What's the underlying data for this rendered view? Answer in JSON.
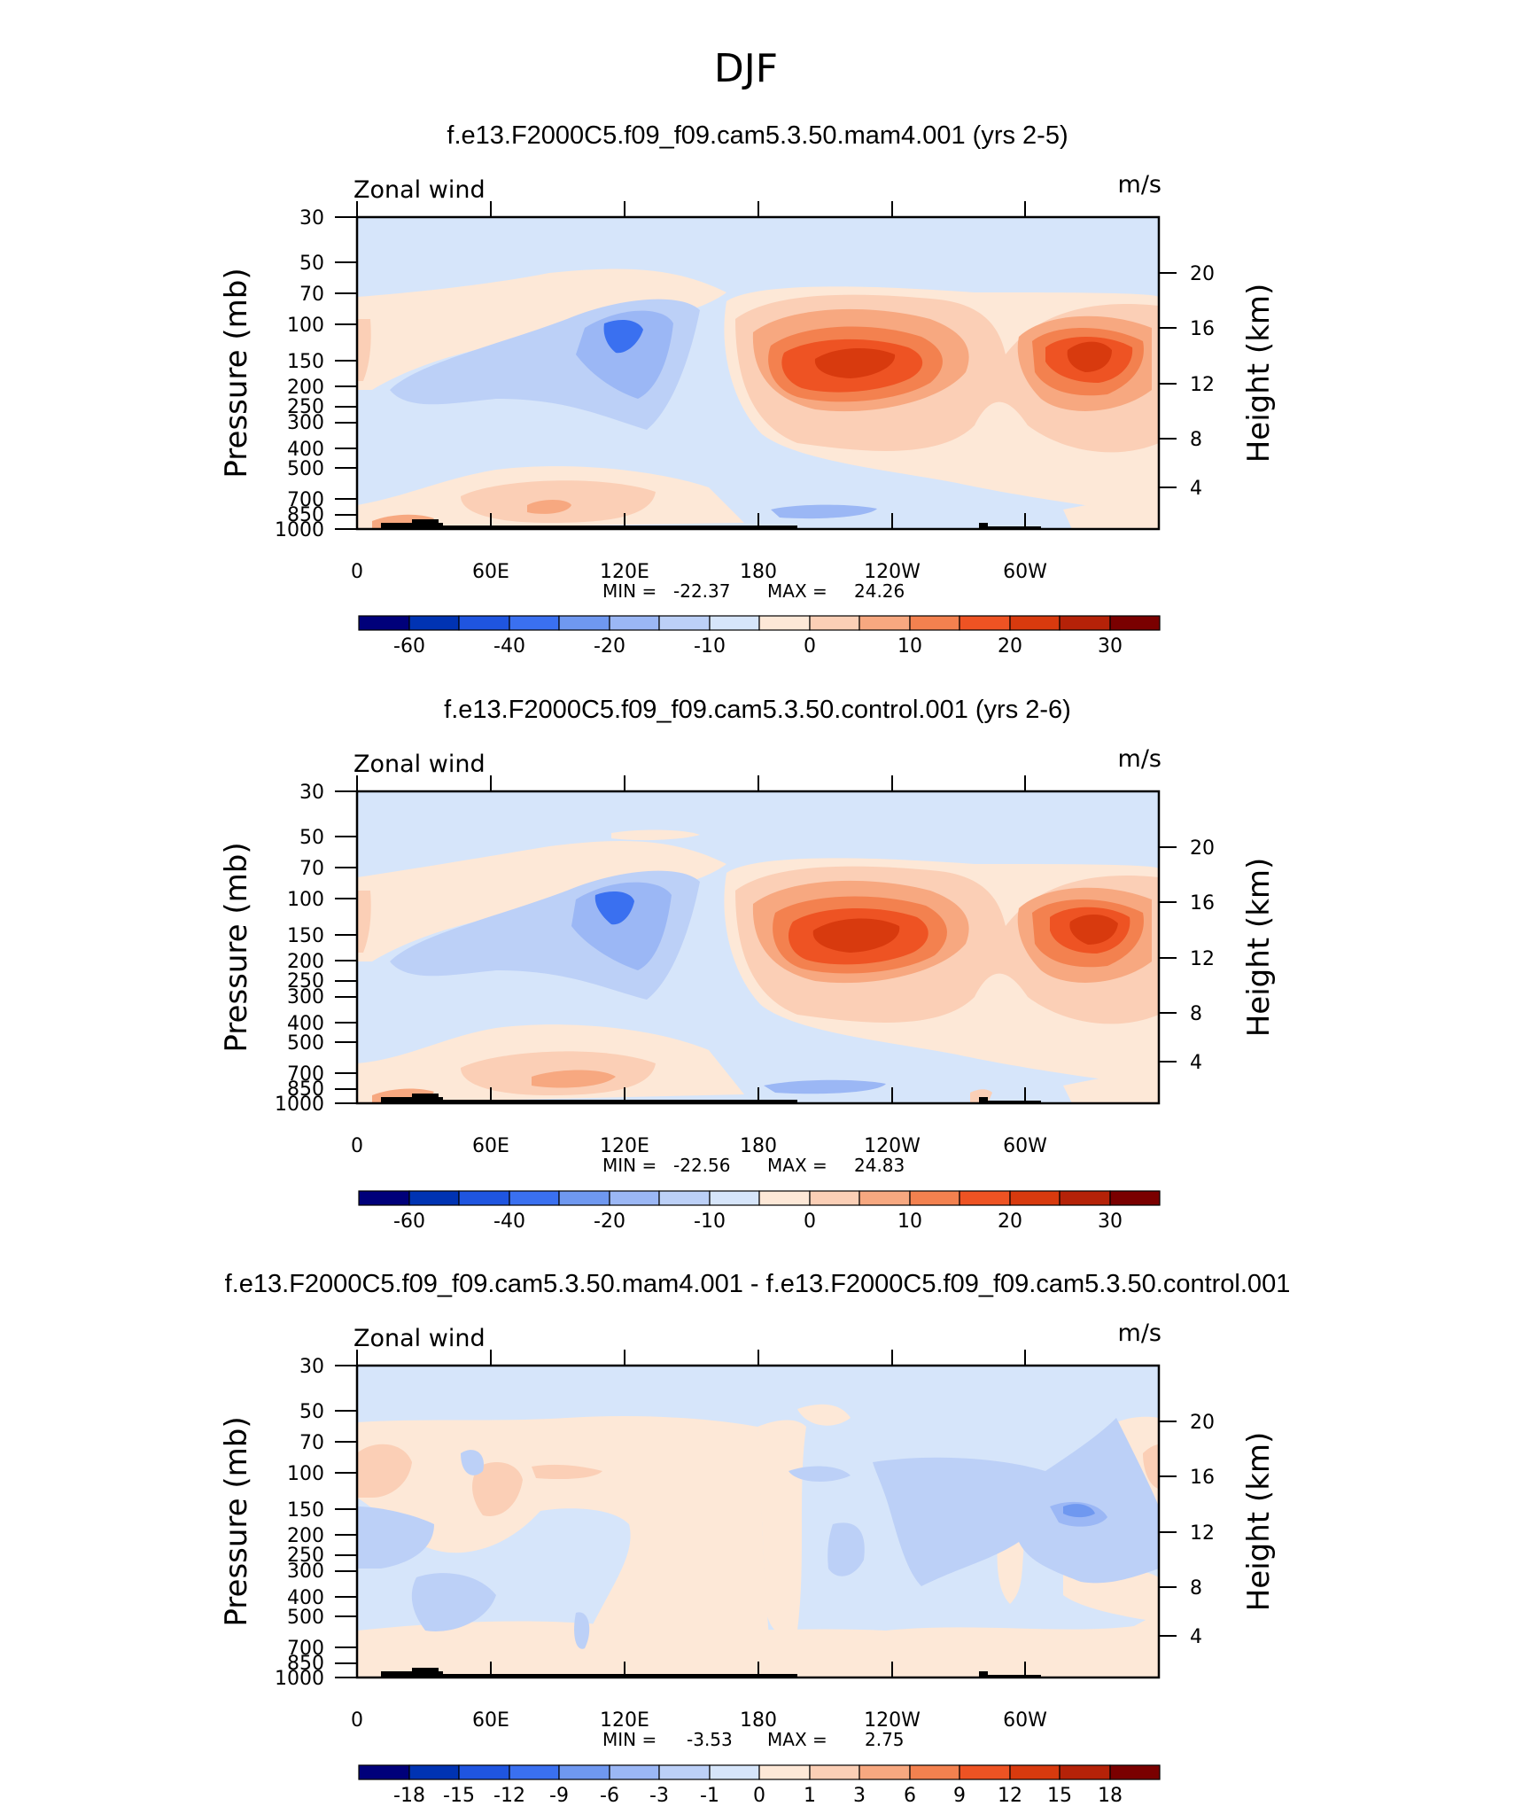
{
  "page_title": "DJF",
  "chart_data": [
    {
      "type": "contour",
      "title": "f.e13.F2000C5.f09_f09.cam5.3.50.mam4.001 (yrs 2-5)",
      "left_label": "Zonal wind",
      "units": "m/s",
      "ylabel": "Pressure (mb)",
      "y2label": "Height (km)",
      "x_ticks": [
        "0",
        "60E",
        "120E",
        "180",
        "120W",
        "60W"
      ],
      "y_ticks": [
        "30",
        "50",
        "70",
        "100",
        "150",
        "200",
        "250",
        "300",
        "400",
        "500",
        "700",
        "850",
        "1000"
      ],
      "y2_ticks": [
        "20",
        "16",
        "12",
        "8",
        "4"
      ],
      "min_label": "MIN =",
      "min": "-22.37",
      "max_label": "MAX =",
      "max": "24.26",
      "colorbar": {
        "labels": [
          "-60",
          "-40",
          "-20",
          "-10",
          "0",
          "10",
          "20",
          "30"
        ],
        "colors": [
          "#00007a",
          "#0033b3",
          "#1f55e0",
          "#3a70f0",
          "#6f98f0",
          "#9bb7f5",
          "#bcd0f7",
          "#d6e5fa",
          "#fde8d7",
          "#fbcfb6",
          "#f7a880",
          "#f3814f",
          "#ee5323",
          "#d83a0e",
          "#b52208",
          "#7a0000"
        ]
      }
    },
    {
      "type": "contour",
      "title": "f.e13.F2000C5.f09_f09.cam5.3.50.control.001 (yrs 2-6)",
      "left_label": "Zonal wind",
      "units": "m/s",
      "ylabel": "Pressure (mb)",
      "y2label": "Height (km)",
      "x_ticks": [
        "0",
        "60E",
        "120E",
        "180",
        "120W",
        "60W"
      ],
      "y_ticks": [
        "30",
        "50",
        "70",
        "100",
        "150",
        "200",
        "250",
        "300",
        "400",
        "500",
        "700",
        "850",
        "1000"
      ],
      "y2_ticks": [
        "20",
        "16",
        "12",
        "8",
        "4"
      ],
      "min_label": "MIN =",
      "min": "-22.56",
      "max_label": "MAX =",
      "max": "24.83",
      "colorbar": {
        "labels": [
          "-60",
          "-40",
          "-20",
          "-10",
          "0",
          "10",
          "20",
          "30"
        ],
        "colors": [
          "#00007a",
          "#0033b3",
          "#1f55e0",
          "#3a70f0",
          "#6f98f0",
          "#9bb7f5",
          "#bcd0f7",
          "#d6e5fa",
          "#fde8d7",
          "#fbcfb6",
          "#f7a880",
          "#f3814f",
          "#ee5323",
          "#d83a0e",
          "#b52208",
          "#7a0000"
        ]
      }
    },
    {
      "type": "contour",
      "title": "f.e13.F2000C5.f09_f09.cam5.3.50.mam4.001 - f.e13.F2000C5.f09_f09.cam5.3.50.control.001",
      "left_label": "Zonal wind",
      "units": "m/s",
      "ylabel": "Pressure (mb)",
      "y2label": "Height (km)",
      "x_ticks": [
        "0",
        "60E",
        "120E",
        "180",
        "120W",
        "60W"
      ],
      "y_ticks": [
        "30",
        "50",
        "70",
        "100",
        "150",
        "200",
        "250",
        "300",
        "400",
        "500",
        "700",
        "850",
        "1000"
      ],
      "y2_ticks": [
        "20",
        "16",
        "12",
        "8",
        "4"
      ],
      "min_label": "MIN =",
      "min": "-3.53",
      "max_label": "MAX =",
      "max": "2.75",
      "colorbar": {
        "labels": [
          "-18",
          "-15",
          "-12",
          "-9",
          "-6",
          "-3",
          "-1",
          "0",
          "1",
          "3",
          "6",
          "9",
          "12",
          "15",
          "18"
        ],
        "colors": [
          "#00007a",
          "#0033b3",
          "#1f55e0",
          "#3a70f0",
          "#6f98f0",
          "#9bb7f5",
          "#bcd0f7",
          "#d6e5fa",
          "#fde8d7",
          "#fbcfb6",
          "#f7a880",
          "#f3814f",
          "#ee5323",
          "#d83a0e",
          "#b52208",
          "#7a0000"
        ]
      }
    }
  ]
}
